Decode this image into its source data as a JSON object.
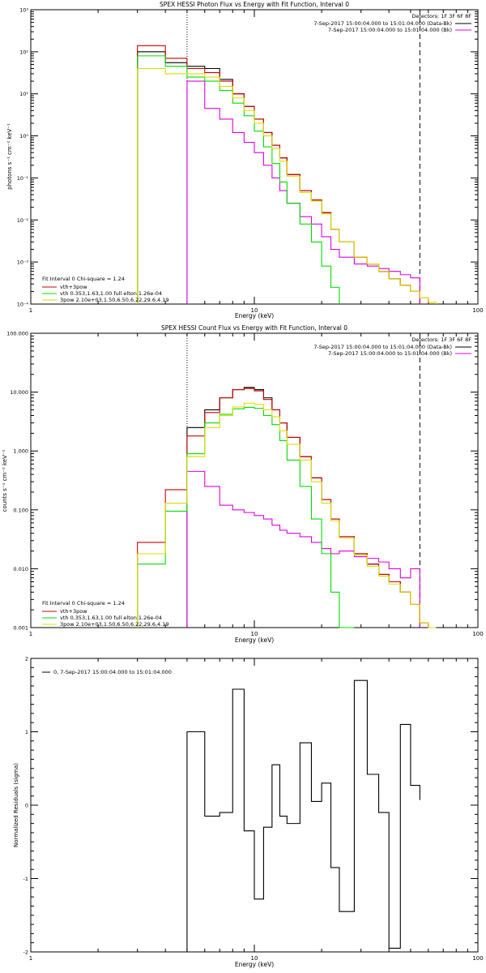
{
  "chart_data": [
    {
      "type": "line",
      "title": "SPEX HESSI Photon Flux vs Energy with Fit Function, Interval 0",
      "xlabel": "Energy (keV)",
      "ylabel": "photons s⁻¹ cm⁻² keV⁻¹",
      "xscale": "log",
      "yscale": "log",
      "xlim": [
        1,
        100
      ],
      "ylim": [
        0.0001,
        1000
      ],
      "x_ticks": [
        "1",
        "10",
        "100"
      ],
      "y_ticks": [
        "10⁻⁴",
        "10⁻³",
        "10⁻²",
        "10⁻¹",
        "10⁰",
        "10¹",
        "10²",
        "10³"
      ],
      "legend_top": [
        "Detectors: 1F 3F 6F 8F",
        "7-Sep-2017 15:00:04.000 to 15:01:04.000 (Data-Bk)",
        "7-Sep-2017 15:00:04.000 to 15:01:04.000 (Bk)"
      ],
      "legend_bottom": [
        "Fit Interval 0   Chi-square = 1.24",
        "vth+3pow",
        "vth 0.353,1.63,1.00  full elton 1.26e-04",
        "3pow 2.10e+03,1.50,6.50,6.22,29.6,4.19"
      ],
      "vlines": [
        5,
        55
      ],
      "edges": [
        3,
        4,
        5,
        6,
        7,
        8,
        9,
        10,
        11,
        12,
        13,
        14,
        16,
        18,
        20,
        22,
        24,
        28,
        32,
        36,
        40,
        45,
        50,
        55,
        60,
        65
      ],
      "series": [
        {
          "name": "Data-Bk",
          "color": "#000000",
          "values": [
            100,
            55,
            45,
            40,
            22,
            10,
            5,
            2.5,
            1.2,
            0.6,
            0.3,
            0.12,
            0.05,
            0.03,
            0.015,
            0.006,
            0.003,
            0.0013,
            0.0009,
            0.0006,
            0.0004,
            0.00028,
            0.0002,
            0.0001,
            null
          ]
        },
        {
          "name": "Bk",
          "color": "#e000e0",
          "values": [
            null,
            null,
            20,
            4.5,
            2.5,
            1.2,
            0.7,
            0.4,
            0.2,
            0.1,
            0.05,
            0.025,
            0.012,
            0.008,
            0.004,
            0.002,
            0.0013,
            0.0009,
            0.0008,
            0.0007,
            0.0006,
            0.0005,
            0.00042,
            null,
            null
          ]
        },
        {
          "name": "vth+3pow",
          "color": "#cc0000",
          "values": [
            140,
            70,
            40,
            32,
            20,
            10,
            5,
            2.5,
            1.2,
            0.6,
            0.3,
            0.12,
            0.05,
            0.03,
            0.015,
            0.006,
            0.003,
            0.0013,
            0.0009,
            0.0006,
            0.0004,
            0.00028,
            0.0002,
            0.00014,
            null
          ]
        },
        {
          "name": "vth",
          "color": "#00dd00",
          "values": [
            80,
            45,
            25,
            20,
            12,
            6,
            3,
            1.3,
            0.55,
            0.22,
            0.08,
            0.025,
            0.008,
            0.003,
            0.0008,
            0.00025,
            null,
            null,
            null,
            null,
            null,
            null,
            null,
            null,
            null
          ]
        },
        {
          "name": "3pow",
          "color": "#dddd00",
          "values": [
            40,
            30,
            30,
            25,
            15,
            8,
            4,
            2,
            1,
            0.5,
            0.25,
            0.11,
            0.045,
            0.028,
            0.014,
            0.006,
            0.003,
            0.0013,
            0.0009,
            0.0006,
            0.0004,
            0.00028,
            0.0002,
            0.00014,
            0.00011
          ]
        }
      ]
    },
    {
      "type": "line",
      "title": "SPEX HESSI Count Flux vs Energy with Fit Function, Interval 0",
      "xlabel": "Energy (keV)",
      "ylabel": "counts s⁻¹ cm⁻² keV⁻¹",
      "xscale": "log",
      "yscale": "log",
      "xlim": [
        1,
        100
      ],
      "ylim": [
        0.001,
        100
      ],
      "x_ticks": [
        "1",
        "10",
        "100"
      ],
      "y_ticks": [
        "0.001",
        "0.010",
        "0.100",
        "1.000",
        "10.000",
        "100.000"
      ],
      "legend_top": [
        "Detectors: 1F 3F 6F 8F",
        "7-Sep-2017 15:00:04.000 to 15:01:04.000 (Data-Bk)",
        "7-Sep-2017 15:00:04.000 to 15:01:04.000 (Bk)"
      ],
      "legend_bottom": [
        "Fit Interval 0   Chi-square = 1.24",
        "vth+3pow",
        "vth 0.353,1.63,1.00  full elton 1.26e-04",
        "3pow 2.10e+03,1.50,6.50,6.22,29.6,4.19"
      ],
      "vlines": [
        5,
        55
      ],
      "edges": [
        3,
        4,
        5,
        6,
        7,
        8,
        9,
        10,
        11,
        12,
        13,
        14,
        16,
        18,
        20,
        22,
        24,
        28,
        32,
        36,
        40,
        45,
        50,
        55,
        60,
        65
      ],
      "series": [
        {
          "name": "Data-Bk",
          "color": "#000000",
          "values": [
            null,
            null,
            2.5,
            5,
            8,
            11,
            12,
            11,
            8,
            5,
            3,
            1.7,
            0.8,
            0.35,
            0.15,
            0.07,
            0.035,
            0.018,
            0.012,
            0.008,
            0.006,
            0.004,
            0.0025,
            null,
            null
          ]
        },
        {
          "name": "Bk",
          "color": "#e000e0",
          "values": [
            null,
            null,
            0.45,
            0.25,
            0.12,
            0.1,
            0.09,
            0.08,
            0.07,
            0.055,
            0.045,
            0.04,
            0.035,
            0.028,
            0.022,
            0.018,
            0.02,
            0.016,
            0.015,
            0.013,
            0.01,
            0.007,
            0.01,
            null,
            null
          ]
        },
        {
          "name": "vth+3pow",
          "color": "#cc0000",
          "values": [
            0.028,
            0.22,
            1.8,
            4.5,
            8,
            11,
            11.5,
            10.5,
            7.5,
            5,
            3,
            1.7,
            0.8,
            0.35,
            0.15,
            0.07,
            0.035,
            0.018,
            0.012,
            0.008,
            0.006,
            0.004,
            0.0025,
            0.0012,
            null
          ]
        },
        {
          "name": "vth",
          "color": "#00dd00",
          "values": [
            0.012,
            0.095,
            0.9,
            3,
            4.2,
            5.2,
            5.5,
            5.3,
            4,
            2.8,
            1.5,
            0.7,
            0.25,
            0.07,
            0.018,
            0.004,
            0.001,
            null,
            null,
            null,
            null,
            null,
            null,
            null,
            null
          ]
        },
        {
          "name": "3pow",
          "color": "#dddd00",
          "values": [
            0.018,
            0.13,
            0.8,
            2.5,
            4,
            5.6,
            6.5,
            6.2,
            5,
            3.8,
            2.2,
            1.3,
            0.7,
            0.3,
            0.13,
            0.065,
            0.033,
            0.017,
            0.011,
            0.0075,
            0.0055,
            0.004,
            0.0025,
            0.0012,
            0.001
          ]
        }
      ]
    },
    {
      "type": "line",
      "title": "",
      "xlabel": "Energy (keV)",
      "ylabel": "Normalized Residuals (sigma)",
      "xscale": "log",
      "yscale": "linear",
      "xlim": [
        1,
        100
      ],
      "ylim": [
        -2,
        2
      ],
      "x_ticks": [
        "1",
        "10",
        "100"
      ],
      "y_ticks": [
        "-2",
        "-1",
        "0",
        "1",
        "2"
      ],
      "legend_top": [
        "0,  7-Sep-2017 15:00:04.000 to 15:01:04.000"
      ],
      "legend_bottom": [],
      "vlines": [],
      "edges": [
        5,
        6,
        7,
        8,
        9,
        10,
        11,
        12,
        13,
        14,
        16,
        18,
        20,
        22,
        24,
        28,
        32,
        36,
        40,
        45,
        50,
        55
      ],
      "series": [
        {
          "name": "0",
          "color": "#000000",
          "values": [
            1.0,
            -0.15,
            -0.1,
            1.58,
            -0.35,
            -1.28,
            -0.3,
            0.55,
            -0.15,
            -0.25,
            0.85,
            0.05,
            0.3,
            -0.85,
            -1.45,
            1.7,
            0.42,
            -0.1,
            -1.95,
            1.1,
            0.27,
            0.07
          ]
        }
      ]
    }
  ]
}
